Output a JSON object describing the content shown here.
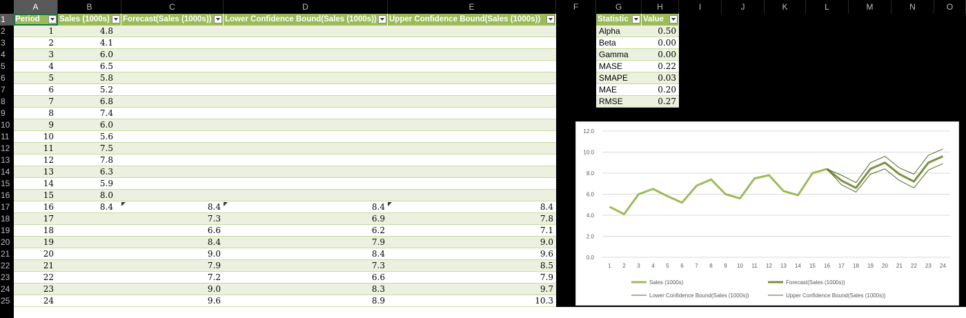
{
  "columns": [
    "A",
    "B",
    "C",
    "D",
    "E",
    "F",
    "G",
    "H",
    "I",
    "J",
    "K",
    "L",
    "M",
    "N",
    "O"
  ],
  "main_table": {
    "headers": [
      "Period",
      "Sales (1000s)",
      "Forecast(Sales (1000s))",
      "Lower Confidence Bound(Sales (1000s))",
      "Upper Confidence Bound(Sales (1000s))"
    ],
    "rows": [
      [
        "1",
        "4.8",
        "",
        "",
        ""
      ],
      [
        "2",
        "4.1",
        "",
        "",
        ""
      ],
      [
        "3",
        "6.0",
        "",
        "",
        ""
      ],
      [
        "4",
        "6.5",
        "",
        "",
        ""
      ],
      [
        "5",
        "5.8",
        "",
        "",
        ""
      ],
      [
        "6",
        "5.2",
        "",
        "",
        ""
      ],
      [
        "7",
        "6.8",
        "",
        "",
        ""
      ],
      [
        "8",
        "7.4",
        "",
        "",
        ""
      ],
      [
        "9",
        "6.0",
        "",
        "",
        ""
      ],
      [
        "10",
        "5.6",
        "",
        "",
        ""
      ],
      [
        "11",
        "7.5",
        "",
        "",
        ""
      ],
      [
        "12",
        "7.8",
        "",
        "",
        ""
      ],
      [
        "13",
        "6.3",
        "",
        "",
        ""
      ],
      [
        "14",
        "5.9",
        "",
        "",
        ""
      ],
      [
        "15",
        "8.0",
        "",
        "",
        ""
      ],
      [
        "16",
        "8.4",
        "8.4",
        "8.4",
        "8.4"
      ],
      [
        "17",
        "",
        "7.3",
        "6.9",
        "7.8"
      ],
      [
        "18",
        "",
        "6.6",
        "6.2",
        "7.1"
      ],
      [
        "19",
        "",
        "8.4",
        "7.9",
        "9.0"
      ],
      [
        "20",
        "",
        "9.0",
        "8.4",
        "9.6"
      ],
      [
        "21",
        "",
        "7.9",
        "7.3",
        "8.5"
      ],
      [
        "22",
        "",
        "7.2",
        "6.6",
        "7.9"
      ],
      [
        "23",
        "",
        "9.0",
        "8.3",
        "9.7"
      ],
      [
        "24",
        "",
        "9.6",
        "8.9",
        "10.3"
      ]
    ]
  },
  "stats_table": {
    "headers": [
      "Statistic",
      "Value"
    ],
    "rows": [
      [
        "Alpha",
        "0.50"
      ],
      [
        "Beta",
        "0.00"
      ],
      [
        "Gamma",
        "0.00"
      ],
      [
        "MASE",
        "0.22"
      ],
      [
        "SMAPE",
        "0.03"
      ],
      [
        "MAE",
        "0.20"
      ],
      [
        "RMSE",
        "0.27"
      ]
    ]
  },
  "chart_data": {
    "type": "line",
    "x": [
      1,
      2,
      3,
      4,
      5,
      6,
      7,
      8,
      9,
      10,
      11,
      12,
      13,
      14,
      15,
      16,
      17,
      18,
      19,
      20,
      21,
      22,
      23,
      24
    ],
    "ylim": [
      0,
      12
    ],
    "yticks": [
      "0.0",
      "2.0",
      "4.0",
      "6.0",
      "8.0",
      "10.0",
      "12.0"
    ],
    "grid": true,
    "legend_position": "bottom",
    "series": [
      {
        "name": "Sales (1000s)",
        "color": "#9bbb59",
        "values": [
          4.8,
          4.1,
          6.0,
          6.5,
          5.8,
          5.2,
          6.8,
          7.4,
          6.0,
          5.6,
          7.5,
          7.8,
          6.3,
          5.9,
          8.0,
          8.4,
          null,
          null,
          null,
          null,
          null,
          null,
          null,
          null
        ]
      },
      {
        "name": "Forecast(Sales (1000s))",
        "color": "#76923c",
        "values": [
          null,
          null,
          null,
          null,
          null,
          null,
          null,
          null,
          null,
          null,
          null,
          null,
          null,
          null,
          null,
          8.4,
          7.3,
          6.6,
          8.4,
          9.0,
          7.9,
          7.2,
          9.0,
          9.6
        ]
      },
      {
        "name": "Lower Confidence Bound(Sales (1000s))",
        "color": "#4f6228",
        "values": [
          null,
          null,
          null,
          null,
          null,
          null,
          null,
          null,
          null,
          null,
          null,
          null,
          null,
          null,
          null,
          8.4,
          6.9,
          6.2,
          7.9,
          8.4,
          7.3,
          6.6,
          8.3,
          8.9
        ]
      },
      {
        "name": "Upper Confidence Bound(Sales (1000s))",
        "color": "#4f6228",
        "values": [
          null,
          null,
          null,
          null,
          null,
          null,
          null,
          null,
          null,
          null,
          null,
          null,
          null,
          null,
          null,
          8.4,
          7.8,
          7.1,
          9.0,
          9.6,
          8.5,
          7.9,
          9.7,
          10.3
        ]
      }
    ]
  }
}
